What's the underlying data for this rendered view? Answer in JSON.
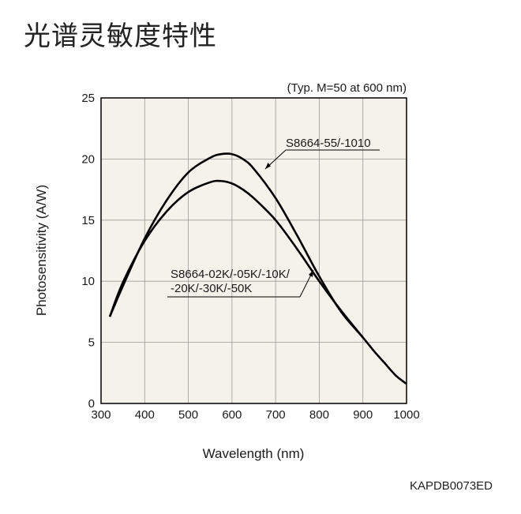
{
  "title": "光谱灵敏度特性",
  "document_code": "KAPDB0073ED",
  "chart_data": {
    "type": "line",
    "subtitle": "(Typ. M=50 at 600 nm)",
    "xlabel": "Wavelength (nm)",
    "ylabel": "Photosensitivity (A/W)",
    "xlim": [
      300,
      1000
    ],
    "ylim": [
      0,
      25
    ],
    "xticks": [
      300,
      400,
      500,
      600,
      700,
      800,
      900,
      1000
    ],
    "yticks": [
      0,
      5,
      10,
      15,
      20,
      25
    ],
    "grid": true,
    "colors": {
      "plot_bg": "#f4f2ea",
      "grid": "#9a9a9a",
      "line": "#000000"
    },
    "series": [
      {
        "name": "S8664-55/-1010",
        "x": [
          320,
          350,
          400,
          450,
          500,
          550,
          575,
          600,
          625,
          650,
          700,
          750,
          800,
          850,
          900,
          925,
          950,
          975,
          1000
        ],
        "y": [
          7.1,
          9.6,
          13.5,
          16.6,
          18.9,
          20.1,
          20.4,
          20.4,
          20.0,
          19.2,
          16.8,
          13.7,
          10.4,
          7.5,
          5.4,
          4.3,
          3.3,
          2.3,
          1.6
        ]
      },
      {
        "name": "S8664-02K/-05K/-10K/-20K/-30K/-50K",
        "name_lines": [
          "S8664-02K/-05K/-10K/",
          "-20K/-30K/-50K"
        ],
        "x": [
          320,
          350,
          400,
          450,
          500,
          550,
          575,
          600,
          625,
          650,
          700,
          750,
          800,
          850,
          900
        ],
        "y": [
          7.1,
          9.9,
          13.3,
          15.7,
          17.3,
          18.1,
          18.2,
          18.0,
          17.5,
          16.8,
          15.0,
          12.6,
          10.0,
          7.6,
          5.4
        ]
      }
    ]
  }
}
